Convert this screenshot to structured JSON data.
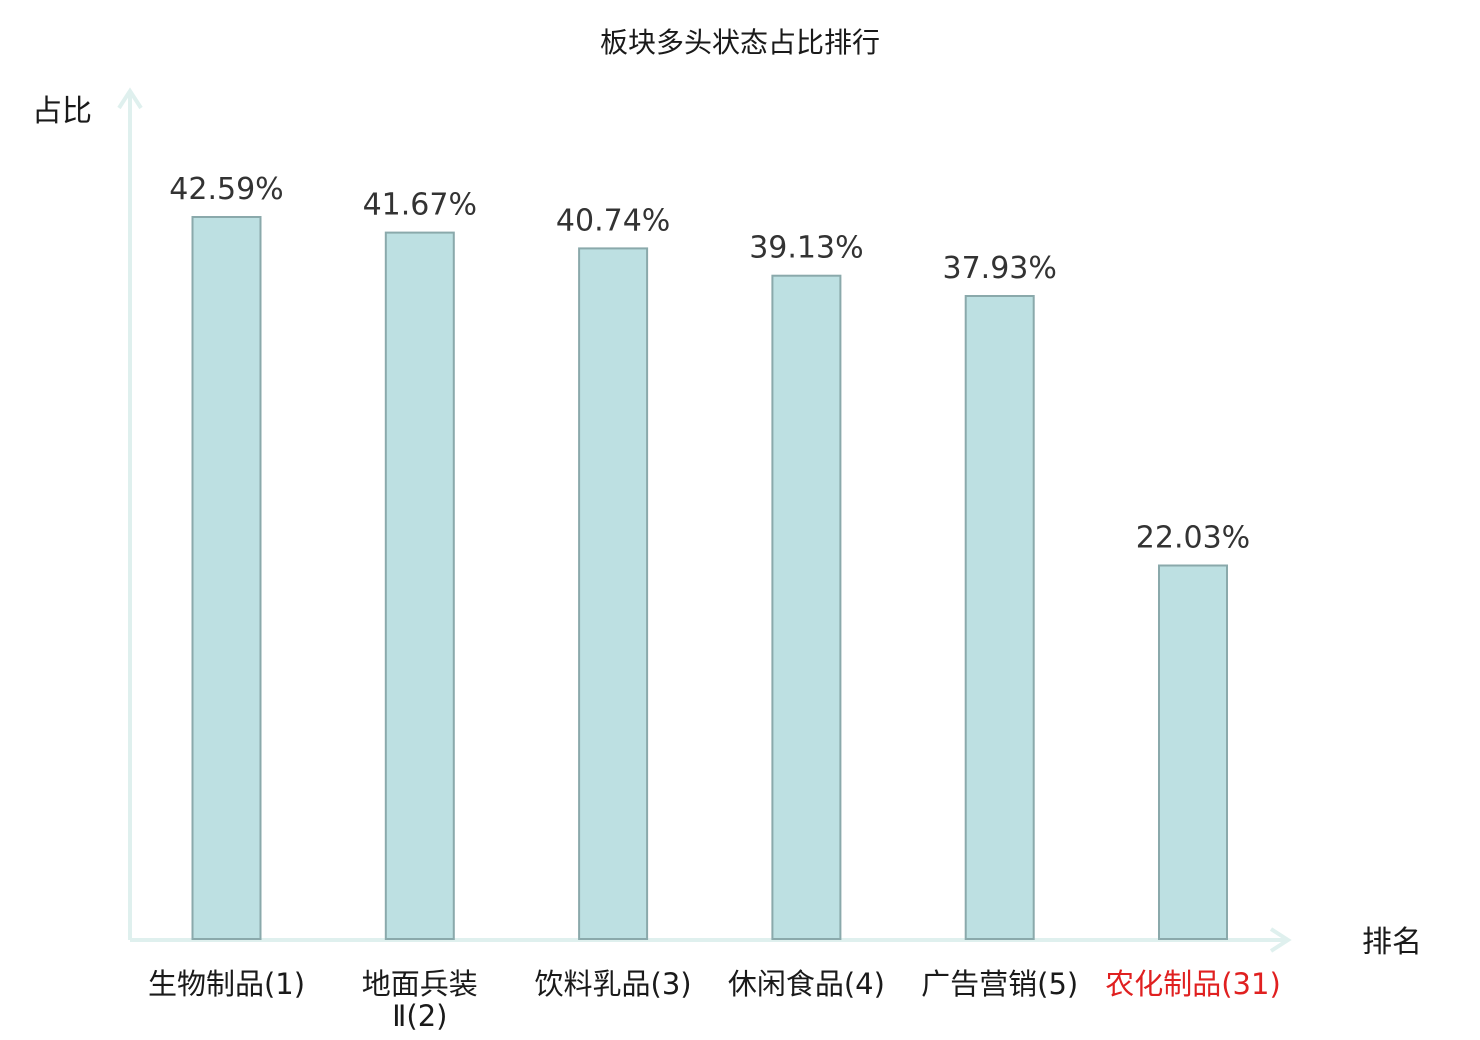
{
  "chart_data": {
    "type": "bar",
    "title": "板块多头状态占比排行",
    "xlabel": "排名",
    "ylabel": "占比",
    "categories": [
      [
        "生物制品(1)"
      ],
      [
        "地面兵装",
        "Ⅱ(2)"
      ],
      [
        "饮料乳品(3)"
      ],
      [
        "休闲食品(4)"
      ],
      [
        "广告营销(5)"
      ],
      [
        "农化制品(31)"
      ]
    ],
    "values": [
      42.59,
      41.67,
      40.74,
      39.13,
      37.93,
      22.03
    ],
    "value_labels": [
      "42.59%",
      "41.67%",
      "40.74%",
      "39.13%",
      "37.93%",
      "22.03%"
    ],
    "highlight_index": 5,
    "ylim": [
      0,
      42.59
    ],
    "grid": false,
    "colors": {
      "bar_fill": "#bde0e2",
      "bar_stroke": "#8aa9ab",
      "axis": "#dff0ee",
      "highlight_label": "#e02020"
    }
  }
}
